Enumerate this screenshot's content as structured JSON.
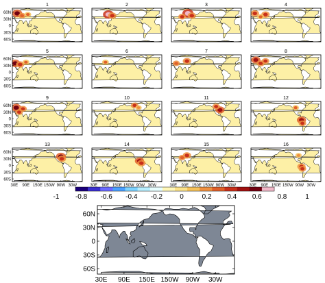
{
  "panel_grid": {
    "panels": [
      {
        "title": "1",
        "hotspots": [
          {
            "lon": 45,
            "lat": 55,
            "level": 0.8
          },
          {
            "lon": 70,
            "lat": 45,
            "level": 0.45
          },
          {
            "lon": 100,
            "lat": 50,
            "level": 0.4
          }
        ]
      },
      {
        "title": "2",
        "hotspots": [
          {
            "lon": 105,
            "lat": 50,
            "level": 0.9
          },
          {
            "lon": 125,
            "lat": 45,
            "level": 0.6
          }
        ]
      },
      {
        "title": "3",
        "hotspots": [
          {
            "lon": 105,
            "lat": 55,
            "level": 0.95
          },
          {
            "lon": 75,
            "lat": 40,
            "level": 0.5
          },
          {
            "lon": 125,
            "lat": 45,
            "level": 0.6
          }
        ]
      },
      {
        "title": "4",
        "hotspots": [
          {
            "lon": 40,
            "lat": 55,
            "level": 0.6
          },
          {
            "lon": 95,
            "lat": 50,
            "level": 0.6
          },
          {
            "lon": 70,
            "lat": 40,
            "level": 0.4
          }
        ]
      },
      {
        "title": "5",
        "hotspots": [
          {
            "lon": 35,
            "lat": 40,
            "level": 0.8
          },
          {
            "lon": 60,
            "lat": 35,
            "level": 0.6
          },
          {
            "lon": 90,
            "lat": 45,
            "level": 0.4
          }
        ]
      },
      {
        "title": "6",
        "hotspots": [
          {
            "lon": 90,
            "lat": 45,
            "level": 0.4
          }
        ]
      },
      {
        "title": "7",
        "hotspots": [
          {
            "lon": 100,
            "lat": 50,
            "level": 0.6
          },
          {
            "lon": 45,
            "lat": 40,
            "level": 0.45
          }
        ]
      },
      {
        "title": "8",
        "hotspots": [
          {
            "lon": 45,
            "lat": 55,
            "level": 0.7
          },
          {
            "lon": 70,
            "lat": 40,
            "level": 0.55
          },
          {
            "lon": 95,
            "lat": 50,
            "level": 0.5
          }
        ]
      },
      {
        "title": "9",
        "hotspots": [
          {
            "lon": 40,
            "lat": 50,
            "level": 0.8
          },
          {
            "lon": 75,
            "lat": 45,
            "level": 0.5
          },
          {
            "lon": 55,
            "lat": 30,
            "level": 0.5
          }
        ]
      },
      {
        "title": "10",
        "hotspots": [
          {
            "lon": -120,
            "lat": 60,
            "level": 0.5
          },
          {
            "lon": -100,
            "lat": 50,
            "level": 0.35
          }
        ]
      },
      {
        "title": "11",
        "hotspots": [
          {
            "lon": -90,
            "lat": 40,
            "level": 0.7
          },
          {
            "lon": -110,
            "lat": 55,
            "level": 0.5
          }
        ]
      },
      {
        "title": "12",
        "hotspots": [
          {
            "lon": -80,
            "lat": -5,
            "level": 0.7
          },
          {
            "lon": -75,
            "lat": -20,
            "level": 0.5
          },
          {
            "lon": -110,
            "lat": 50,
            "level": 0.4
          }
        ]
      },
      {
        "title": "13",
        "hotspots": [
          {
            "lon": -90,
            "lat": 40,
            "level": 0.8
          },
          {
            "lon": -85,
            "lat": 30,
            "level": 0.6
          }
        ]
      },
      {
        "title": "14",
        "hotspots": [
          {
            "lon": -95,
            "lat": 20,
            "level": 0.7
          },
          {
            "lon": -85,
            "lat": 10,
            "level": 0.6
          }
        ]
      },
      {
        "title": "15",
        "hotspots": [
          {
            "lon": 100,
            "lat": 45,
            "level": 0.6
          },
          {
            "lon": 75,
            "lat": 35,
            "level": 0.45
          }
        ]
      },
      {
        "title": "16",
        "hotspots": [
          {
            "lon": -80,
            "lat": -5,
            "level": 0.6
          },
          {
            "lon": -75,
            "lat": -15,
            "level": 0.5
          },
          {
            "lon": -95,
            "lat": 45,
            "level": 0.35
          }
        ]
      }
    ],
    "lat_ticks": [
      "60N",
      "30N",
      "0",
      "30S",
      "60S"
    ],
    "lon_ticks": [
      "30E",
      "90E",
      "150E",
      "150W",
      "90W",
      "30W"
    ]
  },
  "colorbar": {
    "tick_labels": [
      "-1",
      "-0.8",
      "-0.6",
      "-0.4",
      "-0.2",
      "0",
      "0.2",
      "0.4",
      "0.6",
      "0.8",
      "1"
    ],
    "colors": [
      "#1a007a",
      "#3a2fd0",
      "#6b6bff",
      "#4aa0ff",
      "#7dd3ff",
      "#b8efff",
      "#e8ffff",
      "#fff7b8",
      "#fbe28a",
      "#f6c25a",
      "#ef9040",
      "#e0602a",
      "#c8301a",
      "#a01010",
      "#700010",
      "#f0b8c8"
    ]
  },
  "mask_map": {
    "lat_ticks": [
      "60N",
      "30N",
      "0",
      "30S",
      "60S"
    ],
    "lon_ticks": [
      "30E",
      "90E",
      "150E",
      "150W",
      "90W",
      "30W"
    ]
  },
  "colors": {
    "land_fill": "#fdf0a6",
    "mask_fill": "#7e8795",
    "coast": "#000000"
  }
}
